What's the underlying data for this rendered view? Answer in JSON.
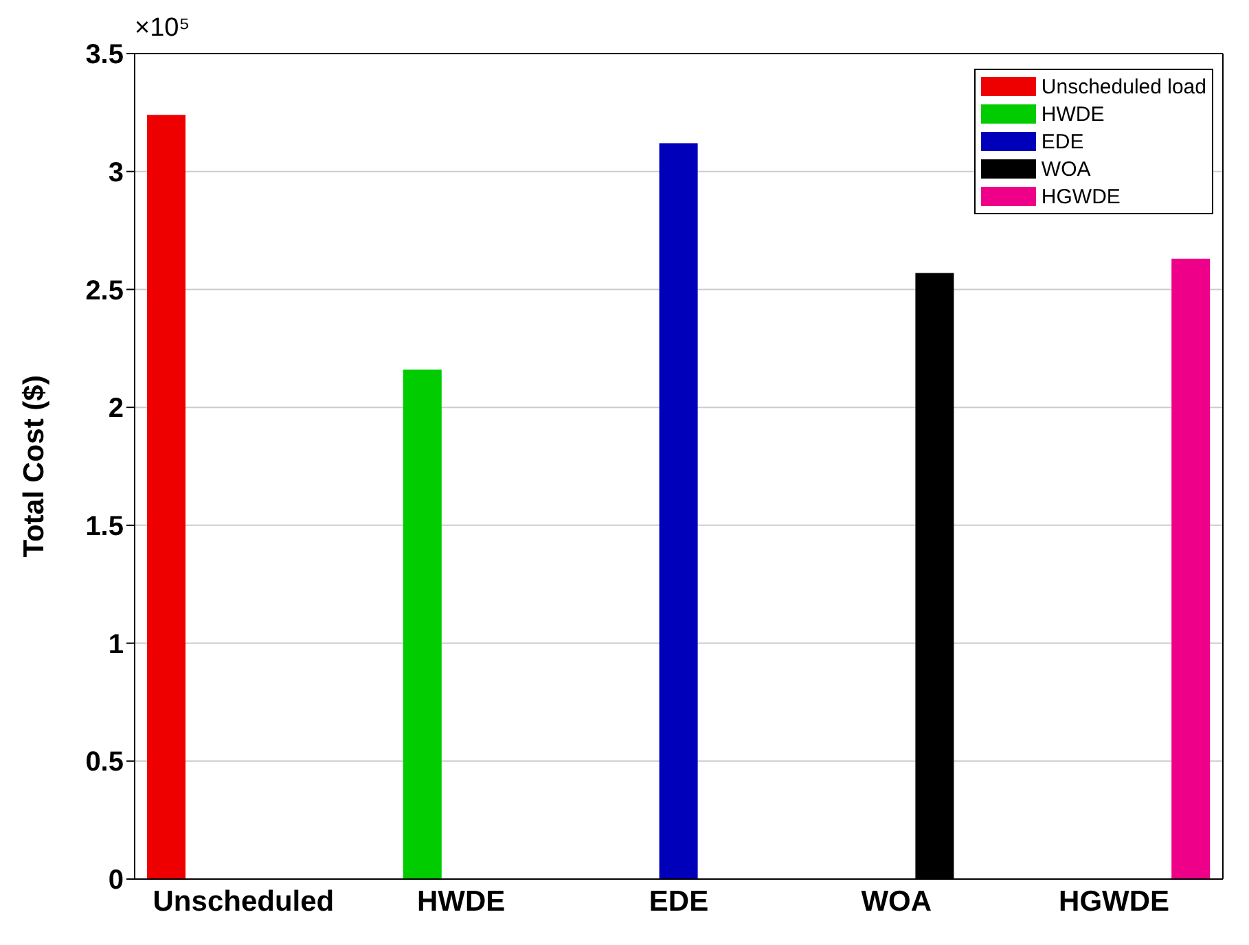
{
  "chart_data": {
    "type": "bar",
    "ylabel": "Total Cost ($)",
    "annotations": [
      "×10⁵"
    ],
    "categories": [
      "Unscheduled",
      "HWDE",
      "EDE",
      "WOA",
      "HGWDE"
    ],
    "series": [
      {
        "name": "Unscheduled load",
        "color": "#ee0000",
        "values": [
          3.24,
          null,
          null,
          null,
          null
        ]
      },
      {
        "name": "HWDE",
        "color": "#00cc00",
        "values": [
          null,
          2.16,
          null,
          null,
          null
        ]
      },
      {
        "name": "EDE",
        "color": "#0000bb",
        "values": [
          null,
          null,
          3.12,
          null,
          null
        ]
      },
      {
        "name": "WOA",
        "color": "#000000",
        "values": [
          null,
          null,
          null,
          2.57,
          null
        ]
      },
      {
        "name": "HGWDE",
        "color": "#ee0088",
        "values": [
          null,
          null,
          null,
          null,
          2.63
        ]
      }
    ],
    "ylim": [
      0,
      3.5
    ],
    "yticks": [
      0,
      0.5,
      1,
      1.5,
      2,
      2.5,
      3,
      3.5
    ],
    "grid": "y",
    "legend": "top right"
  }
}
